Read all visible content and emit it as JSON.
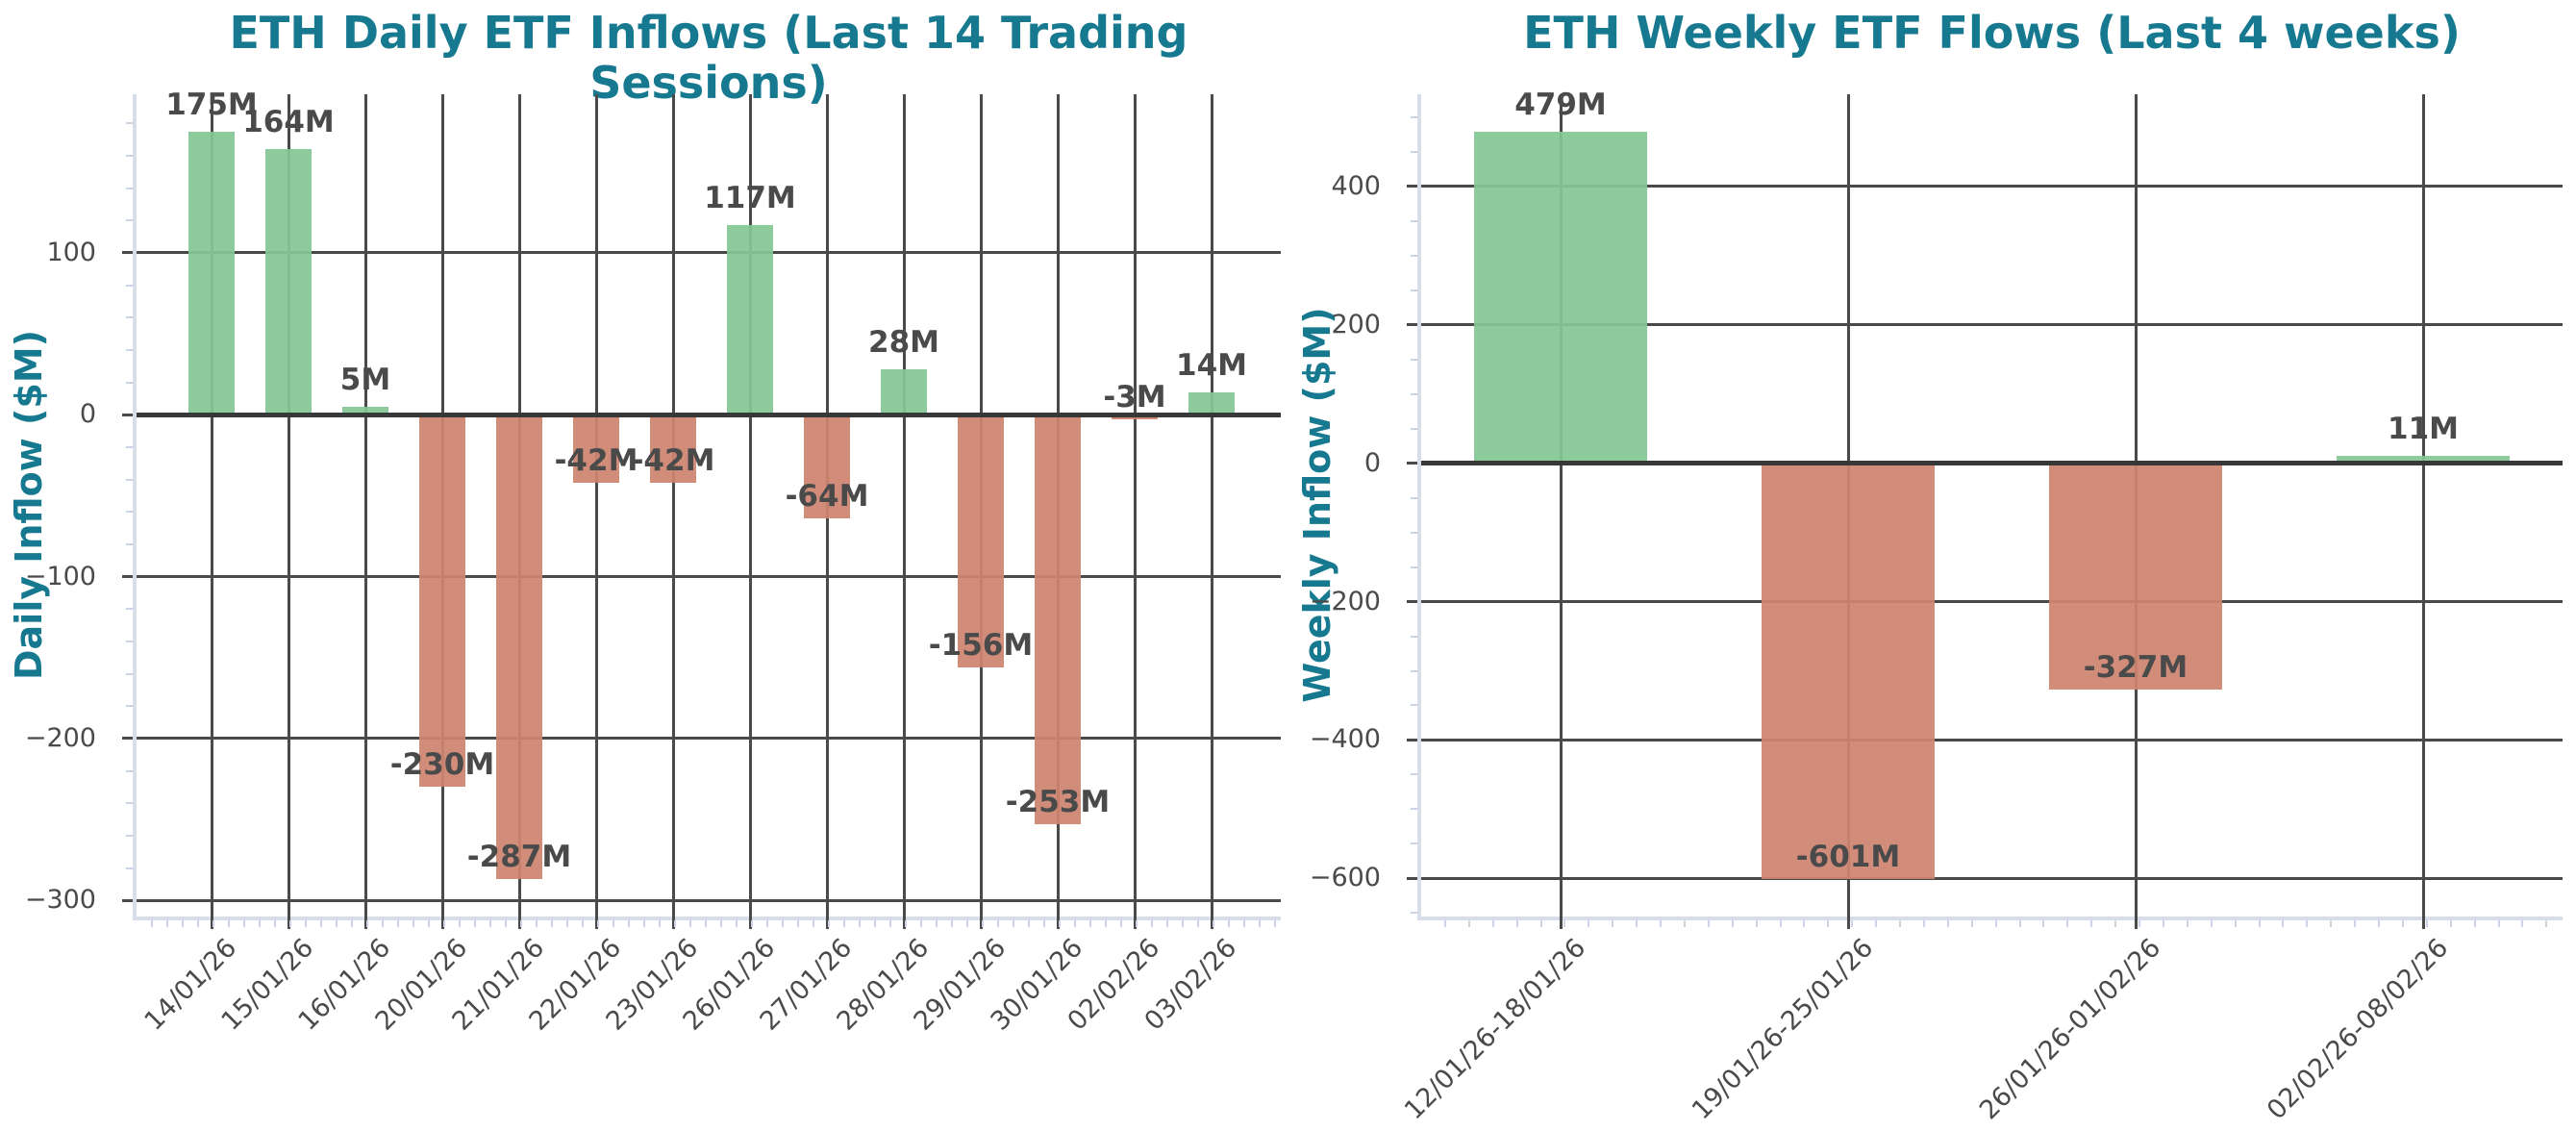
{
  "colors": {
    "title": "#17798F",
    "axis_label": "#17798F",
    "positive_bar": "#85C795",
    "negative_bar": "#CD8470",
    "gridline": "#4A4A4A",
    "zero_line": "#383838",
    "tick_label": "#4A4A4A",
    "spine": "#D7DDE9"
  },
  "chart_data": [
    {
      "type": "bar",
      "title": "ETH Daily ETF Inflows (Last 14 Trading Sessions)",
      "ylabel": "Daily Inflow ($M)",
      "xlabel": "",
      "categories": [
        "14/01/26",
        "15/01/26",
        "16/01/26",
        "20/01/26",
        "21/01/26",
        "22/01/26",
        "23/01/26",
        "26/01/26",
        "27/01/26",
        "28/01/26",
        "29/01/26",
        "30/01/26",
        "02/02/26",
        "03/02/26"
      ],
      "values": [
        175,
        164,
        5,
        -230,
        -287,
        -42,
        -42,
        117,
        -64,
        28,
        -156,
        -253,
        -3,
        14
      ],
      "bar_labels": [
        "175M",
        "164M",
        "5M",
        "-230M",
        "-287M",
        "-42M",
        "-42M",
        "117M",
        "-64M",
        "28M",
        "-156M",
        "-253M",
        "-3M",
        "14M"
      ],
      "yticks": [
        100,
        0,
        -100,
        -200,
        -300
      ],
      "ylim": [
        -310,
        198
      ],
      "grid": true,
      "legend": null,
      "positive_color": "#85C795",
      "negative_color": "#CD8470"
    },
    {
      "type": "bar",
      "title": "ETH Weekly ETF Flows (Last 4 weeks)",
      "ylabel": "Weekly Inflow ($M)",
      "xlabel": "",
      "categories": [
        "12/01/26-18/01/26",
        "19/01/26-25/01/26",
        "26/01/26-01/02/26",
        "02/02/26-08/02/26"
      ],
      "values": [
        479,
        -601,
        -327,
        11
      ],
      "bar_labels": [
        "479M",
        "-601M",
        "-327M",
        "11M"
      ],
      "yticks": [
        400,
        200,
        0,
        -200,
        -400,
        -600
      ],
      "ylim": [
        -655,
        533
      ],
      "grid": true,
      "legend": null,
      "positive_color": "#85C795",
      "negative_color": "#CD8470"
    }
  ]
}
